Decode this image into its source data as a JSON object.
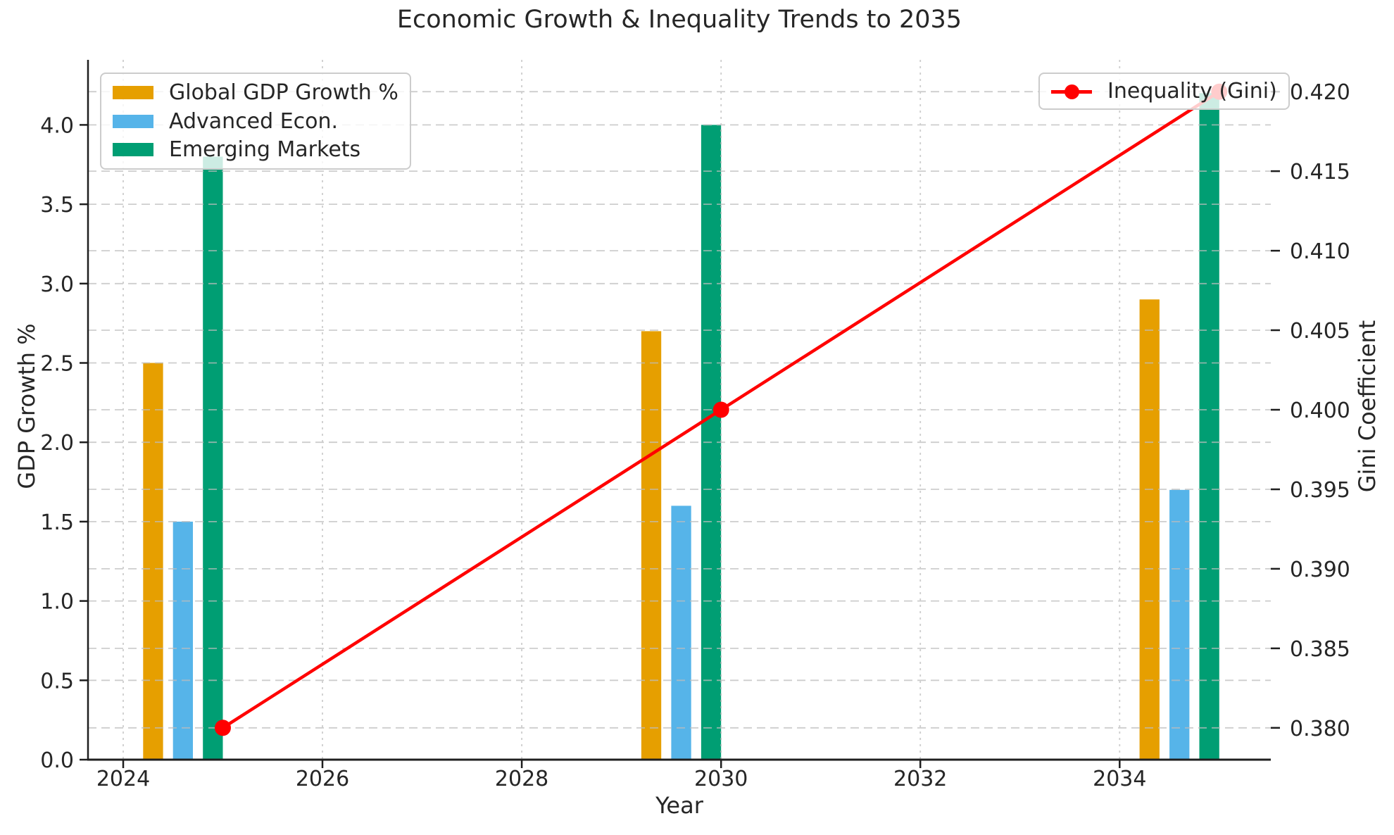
{
  "title": "Economic Growth & Inequality Trends to 2035",
  "axes": {
    "xlabel": "Year",
    "ylabel_left": "GDP Growth %",
    "ylabel_right": "Gini Coefficient"
  },
  "chart_data": {
    "type": "bar",
    "subtype": "grouped-bars-with-line-dual-axis",
    "title": "Economic Growth & Inequality Trends to 2035",
    "xlabel": "Year",
    "ylabel_left": "GDP Growth %",
    "ylabel_right": "Gini Coefficient",
    "x": [
      2025,
      2030,
      2035
    ],
    "bar_width": 0.2,
    "bar_offsets": [
      -0.7,
      -0.4,
      -0.1
    ],
    "series": [
      {
        "name": "Global GDP Growth %",
        "slug": "global-gdp-growth",
        "kind": "bar",
        "axis": "left",
        "color": "#E69F00",
        "values": [
          2.5,
          2.7,
          2.9
        ]
      },
      {
        "name": "Advanced Econ.",
        "slug": "advanced-econ",
        "kind": "bar",
        "axis": "left",
        "color": "#56B4E9",
        "values": [
          1.5,
          1.6,
          1.7
        ]
      },
      {
        "name": "Emerging Markets",
        "slug": "emerging-markets",
        "kind": "bar",
        "axis": "left",
        "color": "#009E73",
        "values": [
          3.8,
          4.0,
          4.2
        ]
      },
      {
        "name": "Inequality (Gini)",
        "slug": "inequality-gini",
        "kind": "line",
        "axis": "right",
        "color": "#FF0000",
        "values": [
          0.38,
          0.4,
          0.42
        ]
      }
    ],
    "xlim": [
      2023.647,
      2035.517
    ],
    "ylim_left": [
      0,
      4.41
    ],
    "ylim_right": [
      0.378,
      0.422
    ],
    "xticks": {
      "values": [
        2024,
        2026,
        2028,
        2030,
        2032,
        2034
      ],
      "labels": [
        "2024",
        "2026",
        "2028",
        "2030",
        "2032",
        "2034"
      ]
    },
    "yticks_left": {
      "values": [
        0,
        0.5,
        1.0,
        1.5,
        2.0,
        2.5,
        3.0,
        3.5,
        4.0
      ],
      "labels": [
        "0.0",
        "0.5",
        "1.0",
        "1.5",
        "2.0",
        "2.5",
        "3.0",
        "3.5",
        "4.0"
      ]
    },
    "yticks_right": {
      "values": [
        0.38,
        0.385,
        0.39,
        0.395,
        0.4,
        0.405,
        0.41,
        0.415,
        0.42
      ],
      "labels": [
        "0.380",
        "0.385",
        "0.390",
        "0.395",
        "0.400",
        "0.405",
        "0.410",
        "0.415",
        "0.420"
      ]
    },
    "grid": {
      "on": true,
      "over_bars": true,
      "color": "#bdbdbd",
      "horizontal_style": "dashed",
      "vertical_style": "dotted"
    },
    "legend_left_position": "upper left",
    "legend_right_position": "upper right"
  },
  "style_colors": {
    "background": "#ffffff",
    "text": "#262626",
    "spine": "#1f1f1f",
    "grid": "#bdbdbd",
    "legend_border": "#cccccc"
  }
}
